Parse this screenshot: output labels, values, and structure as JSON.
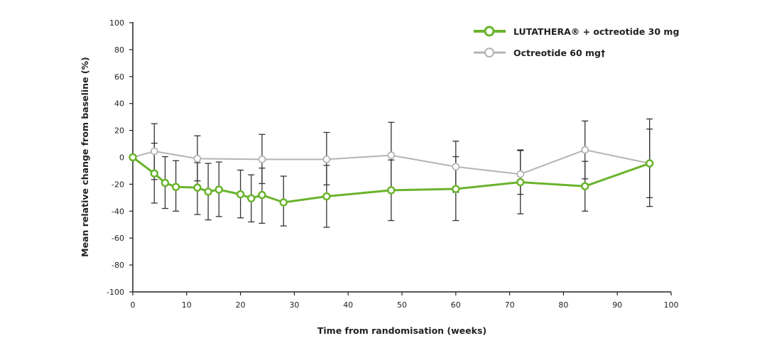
{
  "chart_data": {
    "type": "line",
    "title": "",
    "xlabel": "Time from randomisation (weeks)",
    "ylabel": "Mean relative change from baseline (%)",
    "xlim": [
      0,
      100
    ],
    "ylim": [
      -100,
      100
    ],
    "xticks": [
      0,
      10,
      20,
      30,
      40,
      50,
      60,
      70,
      80,
      90,
      100
    ],
    "yticks": [
      100,
      80,
      60,
      40,
      20,
      0,
      -20,
      -40,
      -60,
      -80,
      -100
    ],
    "grid": false,
    "legend_position": "top-right",
    "series": [
      {
        "name": "LUTATHERA® + octreotide 30 mg",
        "color": "#6ab42d",
        "x": [
          0,
          4,
          6,
          8,
          12,
          14,
          16,
          20,
          22,
          24,
          28,
          36,
          48,
          60,
          72,
          84,
          96
        ],
        "y": [
          0,
          -12,
          -19,
          -22,
          -22.5,
          -25.5,
          -24,
          -27.5,
          -30.5,
          -28,
          -33.5,
          -29,
          -24.5,
          -23.5,
          -18.5,
          -21.5,
          -4.5
        ],
        "err_low": [
          null,
          -34,
          -38,
          -40,
          -42.5,
          -46.5,
          -44,
          -45,
          -48,
          -49,
          -51,
          -52,
          -47,
          -47,
          -42,
          -40,
          -30
        ],
        "err_high": [
          null,
          10.5,
          0.5,
          -2.5,
          -4,
          -4.5,
          -3.5,
          -9.5,
          -13,
          -8,
          -14,
          -6,
          -2,
          0.5,
          5,
          -3,
          21
        ]
      },
      {
        "name": "Octreotide 60 mg†",
        "color": "#b4b4b4",
        "x": [
          0,
          4,
          12,
          24,
          36,
          48,
          60,
          72,
          84,
          96
        ],
        "y": [
          0,
          4.5,
          -1,
          -1.5,
          -1.5,
          1.5,
          -7,
          -12.5,
          5.5,
          -4.5
        ],
        "err_low": [
          null,
          -16.5,
          -17.5,
          -19.5,
          -20.5,
          -23,
          -26,
          -27.5,
          -16,
          -36.5
        ],
        "err_high": [
          null,
          25,
          16,
          17,
          18.5,
          26,
          12,
          5.5,
          27,
          28.5
        ]
      }
    ]
  }
}
